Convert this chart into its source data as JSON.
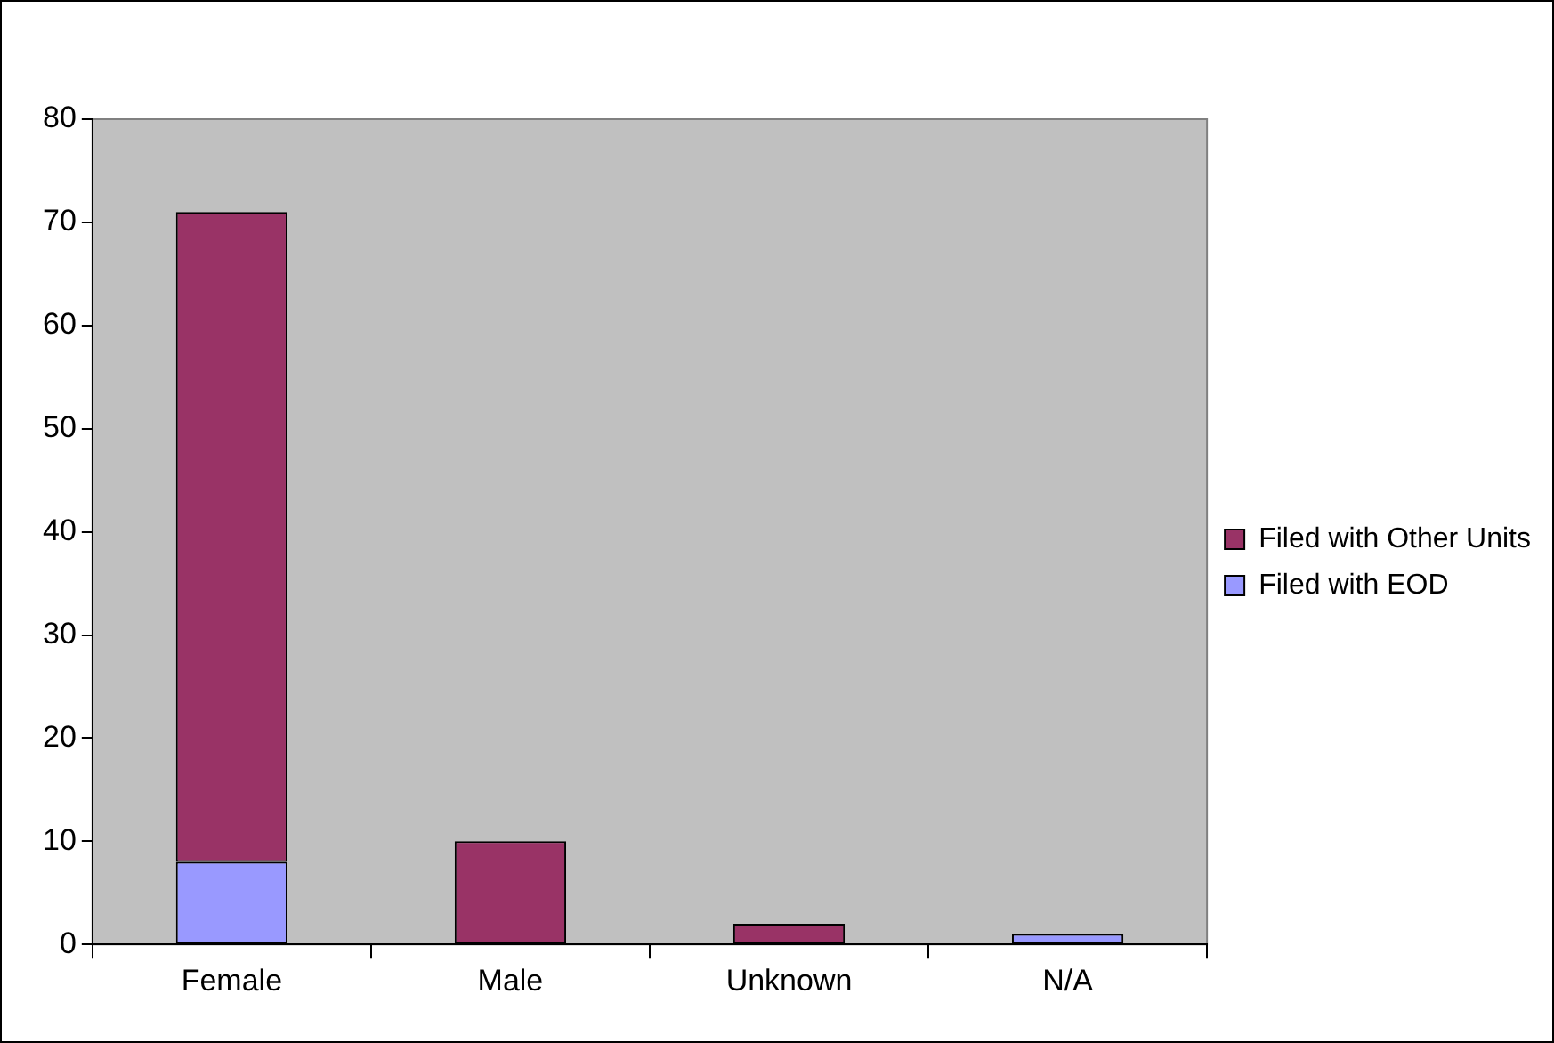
{
  "chart_data": {
    "type": "bar",
    "stacked": true,
    "categories": [
      "Female",
      "Male",
      "Unknown",
      "N/A"
    ],
    "series": [
      {
        "name": "Filed with EOD",
        "color": "#9999ff",
        "values": [
          8,
          0,
          0,
          1
        ]
      },
      {
        "name": "Filed with Other Units",
        "color": "#993366",
        "values": [
          63,
          10,
          2,
          0
        ]
      }
    ],
    "ylim": [
      0,
      80
    ],
    "yticks": [
      0,
      10,
      20,
      30,
      40,
      50,
      60,
      70,
      80
    ],
    "grid": false,
    "legend": "right"
  }
}
